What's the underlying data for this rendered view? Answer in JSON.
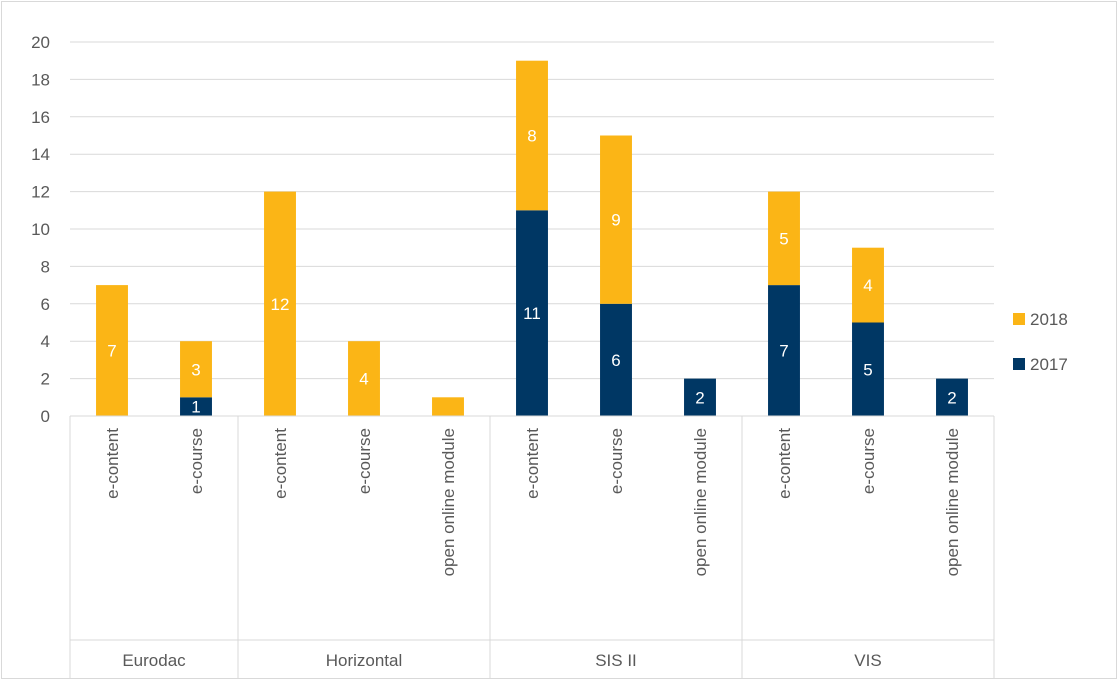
{
  "chart_data": {
    "type": "bar",
    "stacked": true,
    "groups": [
      {
        "name": "Eurodac",
        "categories": [
          "e-content",
          "e-course"
        ]
      },
      {
        "name": "Horizontal",
        "categories": [
          "e-content",
          "e-course",
          "open online module"
        ]
      },
      {
        "name": "SIS II",
        "categories": [
          "e-content",
          "e-course",
          "open online module"
        ]
      },
      {
        "name": "VIS",
        "categories": [
          "e-content",
          "e-course",
          "open online module"
        ]
      }
    ],
    "series": [
      {
        "name": "2017",
        "color": "#003764",
        "values": [
          0,
          1,
          0,
          0,
          0,
          11,
          6,
          2,
          7,
          5,
          2
        ]
      },
      {
        "name": "2018",
        "color": "#FBB516",
        "values": [
          7,
          3,
          12,
          4,
          1,
          8,
          9,
          0,
          5,
          4,
          0
        ]
      }
    ],
    "data_labels": {
      "2017": [
        "",
        "1",
        "",
        "",
        "",
        "11",
        "6",
        "2",
        "7",
        "5",
        "2"
      ],
      "2018": [
        "7",
        "3",
        "12",
        "4",
        "",
        "8",
        "9",
        "",
        "5",
        "4",
        ""
      ]
    },
    "ylim": [
      0,
      20
    ],
    "yticks": [
      0,
      2,
      4,
      6,
      8,
      10,
      12,
      14,
      16,
      18,
      20
    ],
    "grid": true,
    "legend_position": "right",
    "legend_order": [
      "2018",
      "2017"
    ],
    "title": "",
    "xlabel": "",
    "ylabel": ""
  }
}
